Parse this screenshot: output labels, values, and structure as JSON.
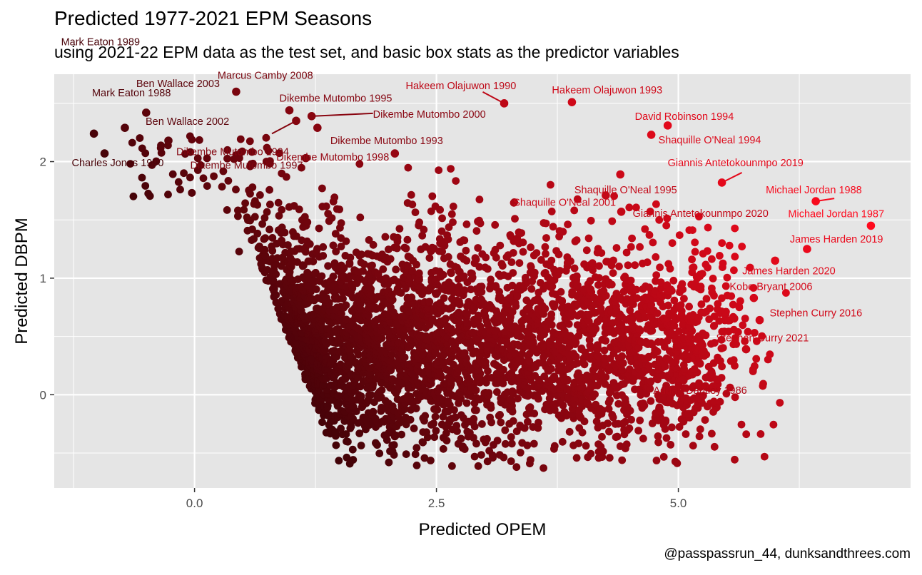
{
  "header": {
    "title": "Predicted 1977-2021 EPM Seasons",
    "subtitle": "using 2021-22 EPM data as the test set, and basic box stats as the predictor variables"
  },
  "caption": "@passpassrun_44, dunksandthrees.com",
  "colors": {
    "panel": "#e5e5e5",
    "grid": "#ffffff",
    "low": "#000000",
    "high": "#ff0a1e"
  },
  "chart_data": {
    "type": "scatter",
    "title": "Predicted 1977-2021 EPM Seasons",
    "subtitle": "using 2021-22 EPM data as the test set, and basic box stats as the predictor variables",
    "xlabel": "Predicted OPEM",
    "ylabel": "Predicted DBPM",
    "xlim": [
      -1.45,
      7.4
    ],
    "ylim": [
      -0.8,
      2.75
    ],
    "x_ticks": [
      0.0,
      2.5,
      5.0
    ],
    "x_tick_labels": [
      "0.0",
      "2.5",
      "5.0"
    ],
    "y_ticks": [
      0,
      1,
      2
    ],
    "y_tick_labels": [
      "0",
      "1",
      "2"
    ],
    "grid": true,
    "legend": "none",
    "color_encoding": "points colored from black (low) to red (high) by total predicted EPM",
    "labeled_points": [
      {
        "name": "Mark Eaton 1989",
        "x": -1.04,
        "y": 2.24
      },
      {
        "name": "Mark Eaton 1988",
        "x": -0.72,
        "y": 2.29
      },
      {
        "name": "Ben Wallace 2003",
        "x": -0.5,
        "y": 2.42
      },
      {
        "name": "Ben Wallace 2002",
        "x": -0.27,
        "y": 2.18
      },
      {
        "name": "Charles Jones 1990",
        "x": -0.93,
        "y": 2.07
      },
      {
        "name": "Marcus Camby 2008",
        "x": 0.43,
        "y": 2.6
      },
      {
        "name": "Dikembe Mutombo 1995",
        "x": 0.98,
        "y": 2.44
      },
      {
        "name": "Dikembe Mutombo 2000",
        "x": 1.21,
        "y": 2.39
      },
      {
        "name": "Dikembe Mutombo 1994",
        "x": 1.05,
        "y": 2.35
      },
      {
        "name": "Dikembe Mutombo 1993",
        "x": 1.27,
        "y": 2.29
      },
      {
        "name": "Dikembe Mutombo 1998",
        "x": 2.07,
        "y": 2.07
      },
      {
        "name": "Dikembe Mutombo 1997",
        "x": 1.15,
        "y": 2.03
      },
      {
        "name": "Hakeem Olajuwon 1990",
        "x": 3.2,
        "y": 2.5
      },
      {
        "name": "Hakeem Olajuwon 1993",
        "x": 3.9,
        "y": 2.51
      },
      {
        "name": "David Robinson 1994",
        "x": 4.89,
        "y": 2.31
      },
      {
        "name": "Shaquille O'Neal 1994",
        "x": 4.72,
        "y": 2.23
      },
      {
        "name": "Shaquille O'Neal 2001",
        "x": 4.4,
        "y": 1.89
      },
      {
        "name": "Shaquille O'Neal 1995",
        "x": 4.25,
        "y": 1.71
      },
      {
        "name": "Giannis Antetokounmpo 2019",
        "x": 5.45,
        "y": 1.82
      },
      {
        "name": "Giannis Antetokounmpo 2020",
        "x": 4.41,
        "y": 1.57
      },
      {
        "name": "Michael Jordan 1988",
        "x": 6.42,
        "y": 1.66
      },
      {
        "name": "Michael Jordan 1987",
        "x": 6.99,
        "y": 1.45
      },
      {
        "name": "James Harden 2019",
        "x": 6.33,
        "y": 1.25
      },
      {
        "name": "James Harden 2020",
        "x": 6.0,
        "y": 1.15
      },
      {
        "name": "Kobe Bryant 2006",
        "x": 5.78,
        "y": 0.83
      },
      {
        "name": "Stephen Curry 2016",
        "x": 5.84,
        "y": 0.64
      },
      {
        "name": "Stephen Curry 2021",
        "x": 5.7,
        "y": 0.39
      },
      {
        "name": "Adrian Dantley 1986",
        "x": 5.05,
        "y": 0.13
      }
    ],
    "other_points_approx": "about 4000 unlabeled seasons forming a wedge from (0.5, 1.6)-(1.2, 0) up to x ≈ 6, y ≈ -0.7 to 2.2"
  }
}
